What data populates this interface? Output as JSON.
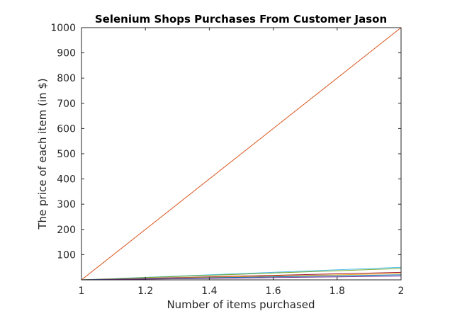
{
  "chart_data": {
    "type": "line",
    "title": "Selenium Shops Purchases From Customer Jason",
    "xlabel": "Number of items purchased",
    "ylabel": "The price of each item (in $)",
    "xlim": [
      1,
      2
    ],
    "ylim": [
      0,
      1000
    ],
    "xticks": [
      "1",
      "1.2",
      "1.4",
      "1.6",
      "1.8",
      "2"
    ],
    "xtick_values": [
      1,
      1.2,
      1.4,
      1.6,
      1.8,
      2
    ],
    "yticks": [
      "100",
      "200",
      "300",
      "400",
      "500",
      "600",
      "700",
      "800",
      "900",
      "1000"
    ],
    "ytick_values": [
      100,
      200,
      300,
      400,
      500,
      600,
      700,
      800,
      900,
      1000
    ],
    "grid": false,
    "legend": "none",
    "series": [
      {
        "color": "#d95319",
        "x": [
          1,
          2
        ],
        "values": [
          0,
          1000
        ]
      },
      {
        "color": "#4dbeee",
        "x": [
          1,
          2
        ],
        "values": [
          0,
          50
        ]
      },
      {
        "color": "#77ac30",
        "x": [
          1,
          2
        ],
        "values": [
          0,
          45
        ]
      },
      {
        "color": "#a2142f",
        "x": [
          1,
          2
        ],
        "values": [
          0,
          30
        ]
      },
      {
        "color": "#edb120",
        "x": [
          1,
          2
        ],
        "values": [
          0,
          25
        ]
      },
      {
        "color": "#0072bd",
        "x": [
          1,
          2
        ],
        "values": [
          0,
          20
        ]
      },
      {
        "color": "#7e2f8e",
        "x": [
          1,
          2
        ],
        "values": [
          0,
          15
        ]
      }
    ]
  }
}
